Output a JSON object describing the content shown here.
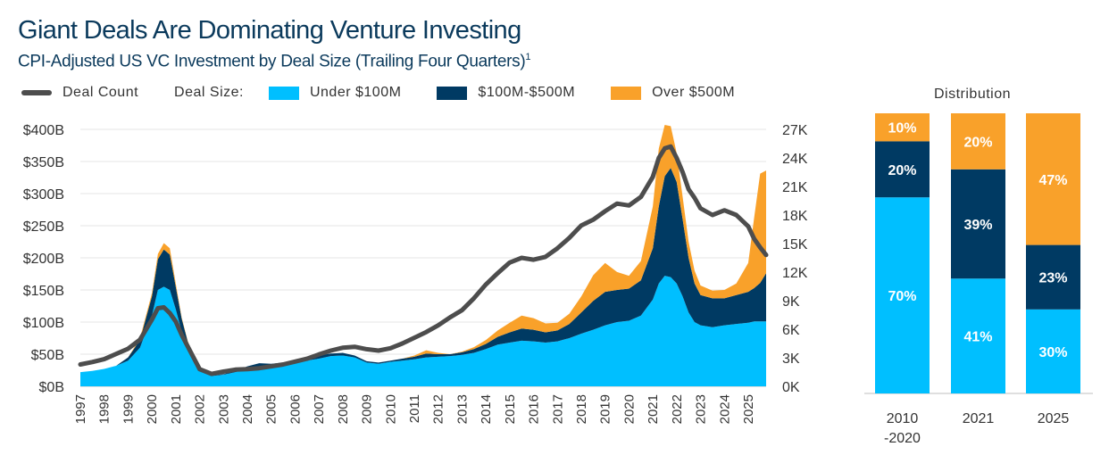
{
  "title": "Giant Deals Are Dominating Venture Investing",
  "subtitle": "CPI-Adjusted US VC Investment by Deal Size (Trailing Four Quarters)",
  "subtitle_note": "1",
  "legend": {
    "deal_count": "Deal Count",
    "deal_size_title": "Deal Size:",
    "under_100m": "Under $100M",
    "mid": "$100M-$500M",
    "over_500m": "Over $500M"
  },
  "colors": {
    "under_100m": "#00bfff",
    "mid": "#003a63",
    "over_500m": "#f9a12a",
    "deal_count": "#4d4d4d"
  },
  "chart_data": [
    {
      "type": "area",
      "title": "Giant Deals Are Dominating Venture Investing",
      "x_ticks": [
        "1997",
        "1998",
        "1999",
        "2000",
        "2001",
        "2002",
        "2003",
        "2004",
        "2005",
        "2006",
        "2007",
        "2008",
        "2009",
        "2010",
        "2011",
        "2012",
        "2013",
        "2014",
        "2015",
        "2016",
        "2017",
        "2018",
        "2019",
        "2020",
        "2021",
        "2022",
        "2023",
        "2024",
        "2025"
      ],
      "y_ticks": [
        "$0B",
        "$50B",
        "$100B",
        "$150B",
        "$200B",
        "$250B",
        "$300B",
        "$350B",
        "$400B"
      ],
      "y_right_ticks": [
        "0K",
        "3K",
        "6K",
        "9K",
        "12K",
        "15K",
        "18K",
        "21K",
        "24K",
        "27K"
      ],
      "ylim": [
        0,
        400
      ],
      "y_right_lim": [
        0,
        27000
      ],
      "stacked": true,
      "grid": true,
      "legend_position": "top",
      "x": [
        1997.0,
        1997.5,
        1998.0,
        1998.5,
        1999.0,
        1999.5,
        2000.0,
        2000.25,
        2000.5,
        2000.75,
        2001.0,
        2001.25,
        2001.5,
        2001.75,
        2002.0,
        2002.5,
        2003.0,
        2003.5,
        2004.0,
        2004.5,
        2005.0,
        2005.5,
        2006.0,
        2006.5,
        2007.0,
        2007.5,
        2008.0,
        2008.5,
        2009.0,
        2009.5,
        2010.0,
        2010.5,
        2011.0,
        2011.5,
        2012.0,
        2012.5,
        2013.0,
        2013.5,
        2014.0,
        2014.5,
        2015.0,
        2015.5,
        2016.0,
        2016.5,
        2017.0,
        2017.5,
        2018.0,
        2018.5,
        2019.0,
        2019.5,
        2020.0,
        2020.5,
        2021.0,
        2021.25,
        2021.5,
        2021.75,
        2022.0,
        2022.25,
        2022.5,
        2022.75,
        2023.0,
        2023.5,
        2024.0,
        2024.5,
        2025.0,
        2025.25,
        2025.5,
        2025.75
      ],
      "series": [
        {
          "name": "Under $100M",
          "values": [
            22,
            24,
            27,
            32,
            40,
            60,
            110,
            150,
            155,
            150,
            120,
            85,
            60,
            40,
            25,
            16,
            18,
            22,
            27,
            30,
            30,
            33,
            37,
            40,
            43,
            47,
            48,
            45,
            37,
            35,
            38,
            40,
            42,
            45,
            46,
            47,
            49,
            52,
            58,
            65,
            68,
            71,
            70,
            68,
            70,
            75,
            82,
            88,
            95,
            100,
            102,
            110,
            135,
            160,
            172,
            170,
            160,
            140,
            115,
            100,
            95,
            92,
            95,
            97,
            99,
            101,
            101,
            101
          ]
        },
        {
          "name": "$100M-$500M",
          "values": [
            0,
            0,
            0,
            0,
            5,
            12,
            30,
            48,
            58,
            55,
            35,
            20,
            10,
            5,
            2,
            1,
            1,
            2,
            4,
            6,
            5,
            4,
            4,
            4,
            5,
            4,
            4,
            3,
            2,
            2,
            2,
            3,
            4,
            6,
            4,
            3,
            4,
            6,
            8,
            12,
            16,
            19,
            18,
            16,
            17,
            22,
            33,
            45,
            52,
            50,
            50,
            55,
            80,
            120,
            155,
            170,
            158,
            120,
            85,
            60,
            47,
            45,
            42,
            45,
            48,
            52,
            60,
            75
          ]
        },
        {
          "name": "Over $500M",
          "values": [
            0,
            0,
            0,
            0,
            0,
            3,
            5,
            8,
            10,
            10,
            5,
            2,
            1,
            0,
            0,
            0,
            0,
            0,
            0,
            0,
            0,
            0,
            0,
            0,
            0,
            0,
            0,
            0,
            0,
            0,
            0,
            0,
            2,
            5,
            2,
            0,
            1,
            3,
            6,
            10,
            15,
            20,
            18,
            14,
            12,
            16,
            25,
            40,
            45,
            28,
            20,
            30,
            65,
            90,
            80,
            65,
            45,
            35,
            25,
            20,
            15,
            12,
            13,
            18,
            45,
            110,
            170,
            160
          ]
        },
        {
          "name": "Deal Count",
          "axis": "right",
          "values": [
            2300,
            2550,
            2850,
            3400,
            3950,
            4900,
            7000,
            8200,
            8300,
            7700,
            6800,
            5400,
            4200,
            3000,
            1800,
            1300,
            1550,
            1750,
            1800,
            1900,
            2100,
            2300,
            2600,
            2900,
            3350,
            3750,
            4050,
            4150,
            3900,
            3750,
            4000,
            4500,
            5100,
            5700,
            6400,
            7250,
            8000,
            9250,
            10700,
            11900,
            13000,
            13500,
            13300,
            13600,
            14500,
            15600,
            16900,
            17500,
            18400,
            19200,
            19000,
            19900,
            22000,
            24000,
            25000,
            25200,
            24000,
            22500,
            20700,
            19800,
            18700,
            18000,
            18500,
            18000,
            16800,
            15500,
            14600,
            13800
          ]
        }
      ]
    },
    {
      "type": "bar",
      "title": "Distribution",
      "categories": [
        "2010\n-2020",
        "2021",
        "2025"
      ],
      "category_lines": [
        [
          "2010",
          "-2020"
        ],
        [
          "2021"
        ],
        [
          "2025"
        ]
      ],
      "stacked": true,
      "unit": "%",
      "series": [
        {
          "name": "Under $100M",
          "values": [
            70,
            41,
            30
          ],
          "labels": [
            "70%",
            "41%",
            "30%"
          ]
        },
        {
          "name": "$100M-$500M",
          "values": [
            20,
            39,
            23
          ],
          "labels": [
            "20%",
            "39%",
            "23%"
          ]
        },
        {
          "name": "Over $500M",
          "values": [
            10,
            20,
            47
          ],
          "labels": [
            "10%",
            "20%",
            "47%"
          ]
        }
      ]
    }
  ]
}
